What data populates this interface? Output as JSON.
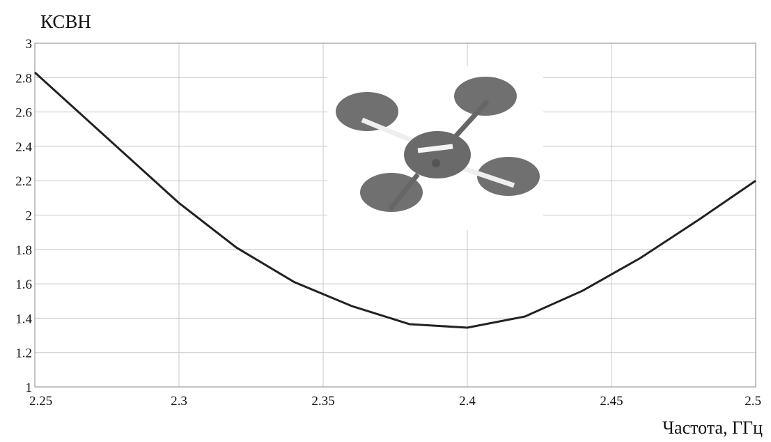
{
  "chart_data": {
    "type": "line",
    "y_label": "КСВН",
    "x_label": "Частота, ГГц",
    "x": [
      2.25,
      2.3,
      2.32,
      2.34,
      2.36,
      2.38,
      2.4,
      2.42,
      2.44,
      2.46,
      2.48,
      2.5
    ],
    "series": [
      {
        "color": "#222222",
        "values": [
          2.83,
          2.07,
          1.81,
          1.61,
          1.47,
          1.365,
          1.345,
          1.41,
          1.56,
          1.75,
          1.97,
          2.2
        ]
      }
    ],
    "xlim": [
      2.25,
      2.5
    ],
    "xticks": [
      2.25,
      2.3,
      2.35,
      2.4,
      2.45,
      2.5
    ],
    "ylim": [
      1,
      3
    ],
    "yticks": [
      1,
      1.2,
      1.4,
      1.6,
      1.8,
      2,
      2.2,
      2.4,
      2.6,
      2.8,
      3
    ],
    "grid": true
  }
}
